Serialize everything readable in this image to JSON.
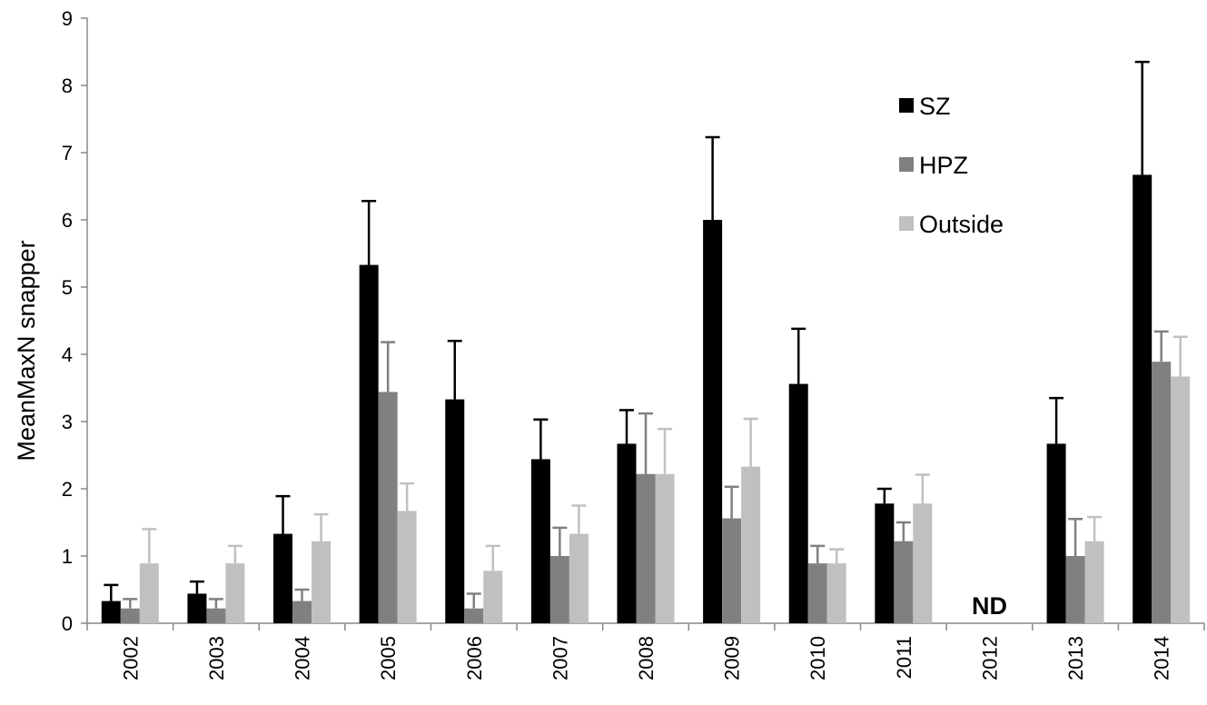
{
  "chart_data": {
    "type": "bar",
    "title": "",
    "xlabel": "",
    "ylabel": "MeanMaxN snapper",
    "ylim": [
      0,
      9
    ],
    "yticks": [
      0,
      1,
      2,
      3,
      4,
      5,
      6,
      7,
      8,
      9
    ],
    "grid": false,
    "legend_position": "top-right",
    "categories": [
      "2002",
      "2003",
      "2004",
      "2005",
      "2006",
      "2007",
      "2008",
      "2009",
      "2010",
      "2011",
      "2012",
      "2013",
      "2014"
    ],
    "series": [
      {
        "name": "SZ",
        "color": "#000000",
        "values": [
          0.33,
          0.44,
          1.33,
          5.33,
          3.33,
          2.44,
          2.67,
          6.0,
          3.56,
          1.78,
          null,
          2.67,
          6.67
        ],
        "error_upper": [
          0.57,
          0.62,
          1.89,
          6.28,
          4.2,
          3.03,
          3.17,
          7.23,
          4.38,
          2.0,
          null,
          3.35,
          8.35
        ]
      },
      {
        "name": "HPZ",
        "color": "#808080",
        "values": [
          0.22,
          0.22,
          0.33,
          3.44,
          0.22,
          1.0,
          2.22,
          1.56,
          0.89,
          1.22,
          null,
          1.0,
          3.89
        ],
        "error_upper": [
          0.36,
          0.36,
          0.5,
          4.18,
          0.44,
          1.42,
          3.12,
          2.03,
          1.15,
          1.5,
          null,
          1.55,
          4.34
        ]
      },
      {
        "name": "Outside",
        "color": "#c0c0c0",
        "values": [
          0.89,
          0.89,
          1.22,
          1.67,
          0.78,
          1.33,
          2.22,
          2.33,
          0.89,
          1.78,
          null,
          1.22,
          3.67
        ],
        "error_upper": [
          1.4,
          1.15,
          1.62,
          2.08,
          1.15,
          1.75,
          2.89,
          3.04,
          1.1,
          2.21,
          null,
          1.58,
          4.26
        ]
      }
    ],
    "annotations": [
      {
        "category": "2012",
        "text": "ND"
      }
    ]
  }
}
